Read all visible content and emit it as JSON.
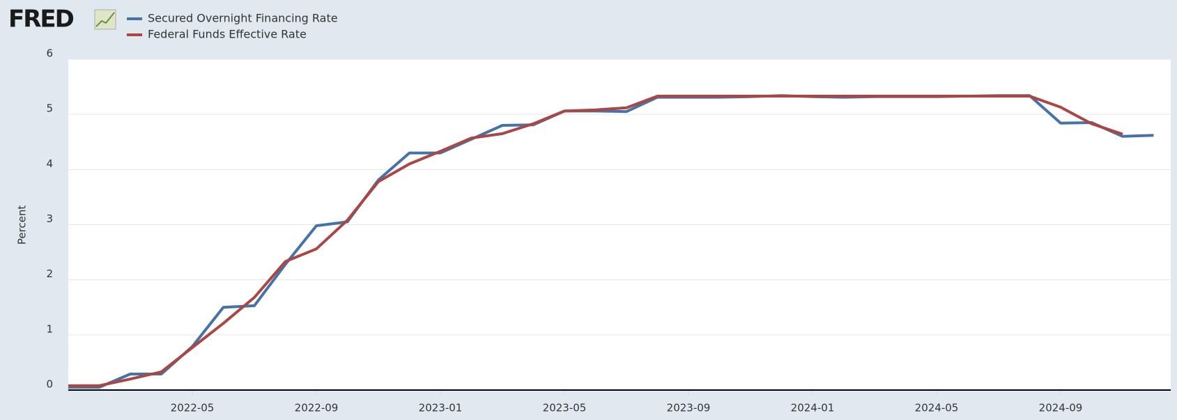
{
  "chart_data": {
    "type": "line",
    "logo": "FRED",
    "y_label": "Percent",
    "x": [
      "2022-01",
      "2022-02",
      "2022-03",
      "2022-04",
      "2022-05",
      "2022-06",
      "2022-07",
      "2022-08",
      "2022-09",
      "2022-10",
      "2022-11",
      "2022-12",
      "2023-01",
      "2023-02",
      "2023-03",
      "2023-04",
      "2023-05",
      "2023-06",
      "2023-07",
      "2023-08",
      "2023-09",
      "2023-10",
      "2023-11",
      "2023-12",
      "2024-01",
      "2024-02",
      "2024-03",
      "2024-04",
      "2024-05",
      "2024-06",
      "2024-07",
      "2024-08",
      "2024-09",
      "2024-10",
      "2024-11",
      "2024-12"
    ],
    "series": [
      {
        "name": "Secured Overnight Financing Rate",
        "color": "#4572a7",
        "values": [
          0.05,
          0.05,
          0.29,
          0.29,
          0.79,
          1.5,
          1.53,
          2.28,
          2.98,
          3.05,
          3.81,
          4.3,
          4.3,
          4.55,
          4.8,
          4.81,
          5.06,
          5.06,
          5.05,
          5.31,
          5.31,
          5.31,
          5.32,
          5.34,
          5.32,
          5.31,
          5.32,
          5.32,
          5.32,
          5.33,
          5.34,
          5.34,
          4.84,
          4.85,
          4.6,
          4.62
        ]
      },
      {
        "name": "Federal Funds Effective Rate",
        "color": "#aa4643",
        "values": [
          0.08,
          0.08,
          0.2,
          0.33,
          0.77,
          1.21,
          1.68,
          2.33,
          2.56,
          3.08,
          3.78,
          4.1,
          4.33,
          4.57,
          4.65,
          4.83,
          5.06,
          5.08,
          5.12,
          5.33,
          5.33,
          5.33,
          5.33,
          5.33,
          5.33,
          5.33,
          5.33,
          5.33,
          5.33,
          5.33,
          5.33,
          5.33,
          5.13,
          4.83,
          4.64,
          null
        ]
      }
    ],
    "ylim": [
      0,
      6
    ],
    "yticks": [
      0,
      1,
      2,
      3,
      4,
      5,
      6
    ],
    "xticks": [
      "2022-05",
      "2022-09",
      "2023-01",
      "2023-05",
      "2023-09",
      "2024-01",
      "2024-05",
      "2024-09"
    ],
    "grid": true
  }
}
